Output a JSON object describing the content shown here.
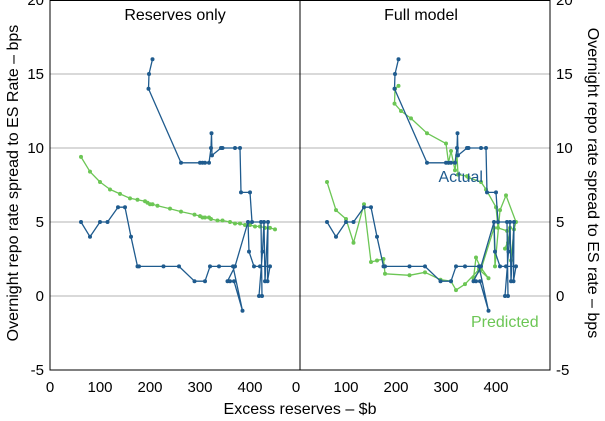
{
  "chart_data": {
    "type": "line",
    "xlabel": "Excess reserves – $b",
    "ylabel_left": "Overnight repo rate spread to ES Rate – bps",
    "ylabel_right": "Overnight repo rate spread to ES rate – bps",
    "xlim": [
      0,
      500
    ],
    "ylim": [
      -5,
      20
    ],
    "xticks": [
      0,
      100,
      200,
      300,
      400
    ],
    "yticks": [
      -5,
      0,
      5,
      10,
      15,
      20
    ],
    "colors": {
      "actual": "#1f5b8e",
      "predicted": "#6cc655"
    },
    "panels": [
      {
        "title": "Reserves only",
        "series": [
          {
            "name": "Actual",
            "points": [
              [
                205,
                16
              ],
              [
                198,
                15
              ],
              [
                197,
                14
              ],
              [
                262,
                9
              ],
              [
                300,
                9
              ],
              [
                305,
                9
              ],
              [
                310,
                9
              ],
              [
                318,
                9
              ],
              [
                322,
                10
              ],
              [
                323,
                11
              ],
              [
                324,
                9.5
              ],
              [
                342,
                10
              ],
              [
                345,
                10
              ],
              [
                370,
                10
              ],
              [
                380,
                10
              ],
              [
                382,
                7
              ],
              [
                400,
                7
              ],
              [
                404,
                5
              ],
              [
                422,
                5
              ],
              [
                424,
                0
              ],
              [
                418,
                0
              ],
              [
                425,
                3
              ],
              [
                428,
                5
              ],
              [
                430,
                1
              ],
              [
                436,
                5
              ],
              [
                435,
                1
              ],
              [
                440,
                2
              ],
              [
                420,
                2
              ],
              [
                408,
                2
              ],
              [
                398,
                3
              ],
              [
                396,
                5
              ],
              [
                370,
                2
              ],
              [
                355,
                1
              ],
              [
                360,
                1
              ],
              [
                368,
                1
              ],
              [
                385,
                -1
              ],
              [
                366,
                2
              ],
              [
                338,
                2
              ],
              [
                320,
                2
              ],
              [
                310,
                1
              ],
              [
                289,
                1
              ],
              [
                258,
                2
              ],
              [
                227,
                2
              ],
              [
                178,
                2
              ],
              [
                175,
                2
              ],
              [
                162,
                4
              ],
              [
                150,
                6
              ],
              [
                136,
                6
              ],
              [
                115,
                5
              ],
              [
                100,
                5
              ],
              [
                80,
                4
              ],
              [
                62,
                5
              ]
            ]
          },
          {
            "name": "Predicted",
            "points": [
              [
                62,
                9.4
              ],
              [
                80,
                8.4
              ],
              [
                100,
                7.7
              ],
              [
                120,
                7.2
              ],
              [
                140,
                6.9
              ],
              [
                160,
                6.6
              ],
              [
                175,
                6.5
              ],
              [
                190,
                6.4
              ],
              [
                195,
                6.3
              ],
              [
                200,
                6.2
              ],
              [
                205,
                6.2
              ],
              [
                215,
                6.1
              ],
              [
                240,
                5.9
              ],
              [
                262,
                5.7
              ],
              [
                289,
                5.5
              ],
              [
                300,
                5.4
              ],
              [
                305,
                5.3
              ],
              [
                310,
                5.3
              ],
              [
                318,
                5.3
              ],
              [
                322,
                5.2
              ],
              [
                335,
                5.1
              ],
              [
                345,
                5.1
              ],
              [
                360,
                5
              ],
              [
                370,
                4.9
              ],
              [
                380,
                4.9
              ],
              [
                390,
                4.8
              ],
              [
                400,
                4.8
              ],
              [
                410,
                4.7
              ],
              [
                420,
                4.7
              ],
              [
                430,
                4.6
              ],
              [
                440,
                4.6
              ],
              [
                450,
                4.5
              ]
            ]
          }
        ]
      },
      {
        "title": "Full model",
        "series": [
          {
            "name": "Actual",
            "points": [
              [
                205,
                16
              ],
              [
                198,
                15
              ],
              [
                197,
                14
              ],
              [
                262,
                9
              ],
              [
                300,
                9
              ],
              [
                305,
                9
              ],
              [
                310,
                9
              ],
              [
                318,
                9
              ],
              [
                322,
                10
              ],
              [
                323,
                11
              ],
              [
                324,
                9.5
              ],
              [
                342,
                10
              ],
              [
                345,
                10
              ],
              [
                370,
                10
              ],
              [
                380,
                10
              ],
              [
                382,
                7
              ],
              [
                400,
                7
              ],
              [
                404,
                5
              ],
              [
                422,
                5
              ],
              [
                424,
                0
              ],
              [
                418,
                0
              ],
              [
                425,
                3
              ],
              [
                428,
                5
              ],
              [
                430,
                1
              ],
              [
                436,
                5
              ],
              [
                435,
                1
              ],
              [
                440,
                2
              ],
              [
                420,
                2
              ],
              [
                408,
                2
              ],
              [
                398,
                3
              ],
              [
                396,
                5
              ],
              [
                370,
                2
              ],
              [
                355,
                1
              ],
              [
                360,
                1
              ],
              [
                368,
                1
              ],
              [
                385,
                -1
              ],
              [
                366,
                2
              ],
              [
                338,
                2
              ],
              [
                320,
                2
              ],
              [
                310,
                1
              ],
              [
                289,
                1
              ],
              [
                258,
                2
              ],
              [
                227,
                2
              ],
              [
                178,
                2
              ],
              [
                175,
                2
              ],
              [
                162,
                4
              ],
              [
                150,
                6
              ],
              [
                136,
                6
              ],
              [
                115,
                5
              ],
              [
                100,
                5
              ],
              [
                80,
                4
              ],
              [
                62,
                5
              ]
            ]
          },
          {
            "name": "Predicted",
            "points": [
              [
                205,
                14.2
              ],
              [
                198,
                14
              ],
              [
                197,
                13
              ],
              [
                210,
                12.5
              ],
              [
                230,
                12
              ],
              [
                262,
                11
              ],
              [
                300,
                10.3
              ],
              [
                305,
                9
              ],
              [
                310,
                9.8
              ],
              [
                318,
                8.5
              ],
              [
                322,
                9.5
              ],
              [
                324,
                8.2
              ],
              [
                342,
                8.1
              ],
              [
                345,
                8
              ],
              [
                370,
                7.7
              ],
              [
                380,
                7.2
              ],
              [
                400,
                6
              ],
              [
                404,
                4.6
              ],
              [
                422,
                4.4
              ],
              [
                424,
                3.6
              ],
              [
                418,
                3.2
              ],
              [
                425,
                3.8
              ],
              [
                428,
                4.6
              ],
              [
                430,
                2.4
              ],
              [
                436,
                4.5
              ],
              [
                440,
                5
              ],
              [
                420,
                6.8
              ],
              [
                408,
                5.8
              ],
              [
                398,
                2
              ],
              [
                396,
                4.6
              ],
              [
                370,
                1.8
              ],
              [
                355,
                1.2
              ],
              [
                360,
                2.6
              ],
              [
                368,
                2
              ],
              [
                385,
                1.2
              ],
              [
                366,
                1.8
              ],
              [
                338,
                0.8
              ],
              [
                320,
                0.4
              ],
              [
                310,
                1
              ],
              [
                289,
                1.1
              ],
              [
                258,
                1.6
              ],
              [
                227,
                1.4
              ],
              [
                178,
                1.5
              ],
              [
                175,
                2.5
              ],
              [
                162,
                2.4
              ],
              [
                150,
                2.3
              ],
              [
                136,
                6.2
              ],
              [
                115,
                3.6
              ],
              [
                100,
                5.2
              ],
              [
                80,
                5.8
              ],
              [
                62,
                7.7
              ]
            ]
          }
        ]
      }
    ],
    "annotations": [
      {
        "text": "Actual",
        "panel": "Full model",
        "series": "Actual",
        "x": 285,
        "y": 7.7
      },
      {
        "text": "Predicted",
        "panel": "Full model",
        "series": "Predicted",
        "x": 350,
        "y": -2.1
      }
    ]
  }
}
